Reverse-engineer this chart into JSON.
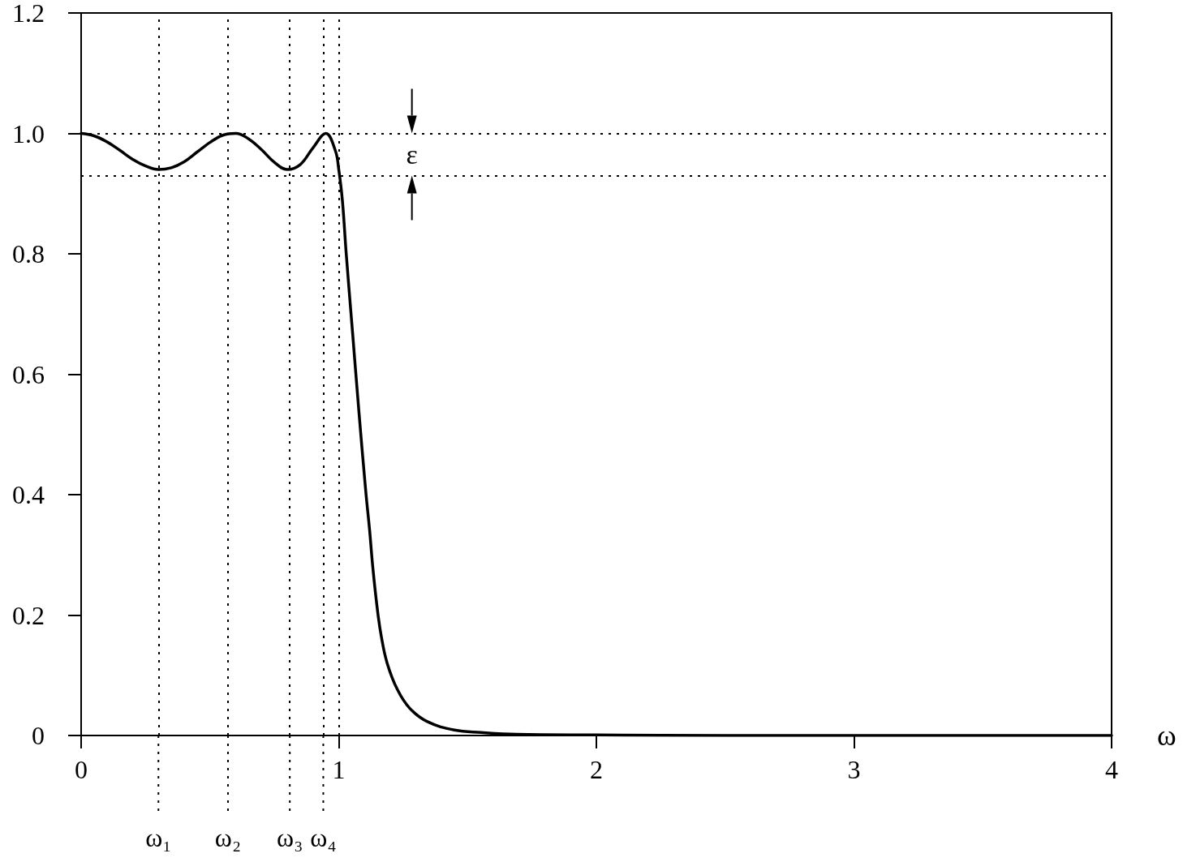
{
  "chart_data": {
    "type": "line",
    "xlabel": "ω",
    "x": [
      0,
      0.05,
      0.1,
      0.15,
      0.2,
      0.25,
      0.3,
      0.35,
      0.4,
      0.45,
      0.5,
      0.55,
      0.6,
      0.65,
      0.7,
      0.75,
      0.8,
      0.85,
      0.9,
      0.95,
      0.987,
      1.0,
      1.014,
      1.029,
      1.054,
      1.079,
      1.105,
      1.12,
      1.132,
      1.15,
      1.165,
      1.188,
      1.228,
      1.276,
      1.344,
      1.449,
      1.553,
      1.69,
      2.0,
      2.5,
      3.0,
      4.0
    ],
    "series": [
      {
        "color": "#000000",
        "values": [
          1.0,
          0.996,
          0.986,
          0.972,
          0.957,
          0.946,
          0.94,
          0.943,
          0.953,
          0.969,
          0.985,
          0.997,
          1.0,
          0.991,
          0.973,
          0.952,
          0.94,
          0.948,
          0.976,
          1.0,
          0.971,
          0.94,
          0.889,
          0.8,
          0.667,
          0.534,
          0.405,
          0.34,
          0.28,
          0.209,
          0.165,
          0.12,
          0.076,
          0.045,
          0.023,
          0.009,
          0.005,
          0.002,
          0.001,
          0,
          0,
          0
        ]
      }
    ],
    "xlim": [
      0,
      4
    ],
    "ylim": [
      0,
      1.2
    ],
    "xticks": [
      0,
      1,
      2,
      3,
      4
    ],
    "yticks": [
      0,
      0.2,
      0.4,
      0.6,
      0.8,
      {
        "value": 1,
        "label": "1.0"
      },
      1.2
    ],
    "marker": "none",
    "line_style": "solid",
    "ref_lines": [
      {
        "axis": "y",
        "value": 1,
        "color": "#000000",
        "line_style": "dotted"
      },
      {
        "axis": "y",
        "value": 0.93,
        "color": "#000000",
        "line_style": "dotted"
      },
      {
        "axis": "x",
        "value": 0.3,
        "label": "ω₁",
        "color": "#000000",
        "line_style": "dotted"
      },
      {
        "axis": "x",
        "value": 0.57,
        "label": "ω₂",
        "color": "#000000",
        "line_style": "dotted"
      },
      {
        "axis": "x",
        "value": 0.81,
        "label": "ω₃",
        "color": "#000000",
        "line_style": "dotted"
      },
      {
        "axis": "x",
        "value": 0.94,
        "label": "ω₄",
        "color": "#000000",
        "line_style": "dotted"
      },
      {
        "axis": "x",
        "value": 1,
        "color": "#000000",
        "line_style": "dotted"
      }
    ],
    "annotations": [
      "ε"
    ]
  }
}
